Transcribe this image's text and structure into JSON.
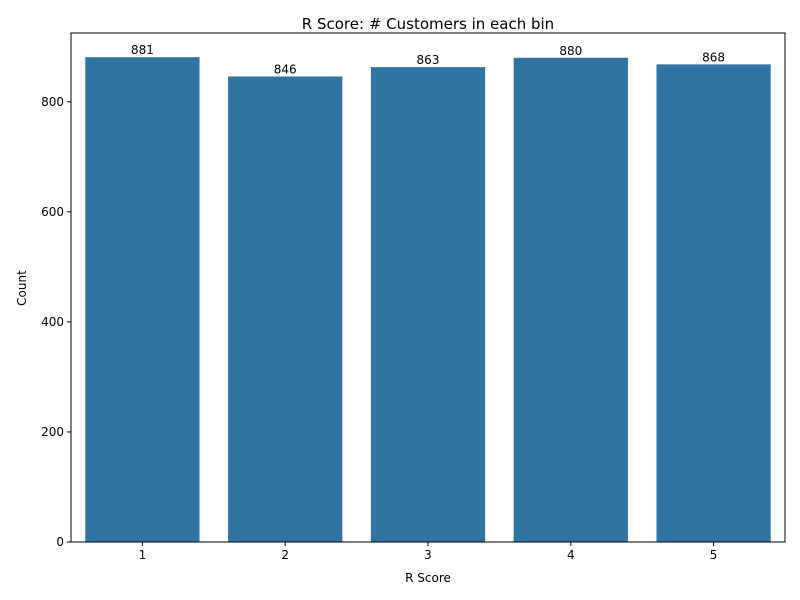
{
  "chart_data": {
    "type": "bar",
    "title": "R Score: # Customers in each bin",
    "xlabel": "R Score",
    "ylabel": "Count",
    "categories": [
      "1",
      "2",
      "3",
      "4",
      "5"
    ],
    "values": [
      881,
      846,
      863,
      880,
      868
    ],
    "data_labels": [
      "881",
      "846",
      "863",
      "880",
      "868"
    ],
    "y_ticks": [
      0,
      200,
      400,
      600,
      800
    ],
    "ylim": [
      0,
      925
    ],
    "grid": false,
    "colors": {
      "bar": "#3274a1",
      "axis": "#000000",
      "background": "#ffffff"
    }
  }
}
